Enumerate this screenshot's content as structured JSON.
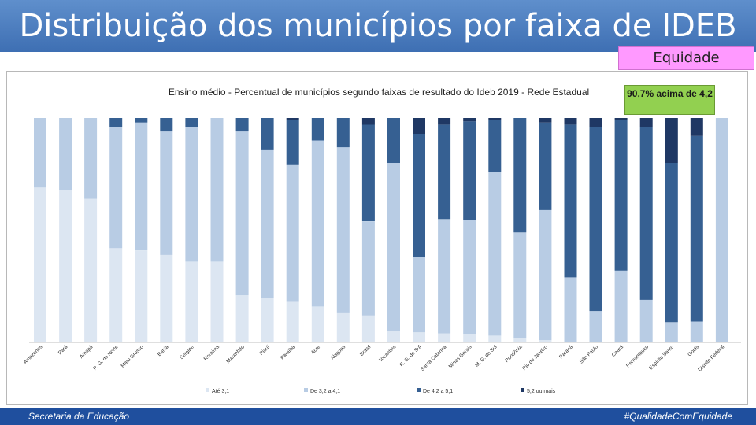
{
  "slide": {
    "title": "Distribuição dos municípios por faixa de IDEB",
    "tag": "Equidade",
    "callout": "90,7% acima de 4,2",
    "footer_left": "Secretaria  da Educação",
    "footer_right": "#QualidadeComEquidade"
  },
  "colors": {
    "title_bar": "#4a7ebf",
    "tag_bg": "#ff99ff",
    "callout_bg": "#92d050",
    "footer_bg": "#1f4f9e",
    "series": [
      "#dce6f2",
      "#b8cce4",
      "#366092",
      "#1f3864"
    ]
  },
  "chart_data": {
    "type": "bar",
    "stacked": true,
    "percent": true,
    "title": "Ensino médio - Percentual de municípios segundo faixas de resultado do Ideb 2019 - Rede Estadual",
    "categories": [
      "Amazonas",
      "Pará",
      "Amapá",
      "R. G. do Norte",
      "Mato Grosso",
      "Bahia",
      "Sergipe",
      "Roraima",
      "Maranhão",
      "Piauí",
      "Paraíba",
      "Acre",
      "Alagoas",
      "Brasil",
      "Tocantins",
      "R. G. do Sul",
      "Santa Catarina",
      "Minas Gerais",
      "M. G. do Sul",
      "Rondônia",
      "Rio de Janeiro",
      "Paraná",
      "São Paulo",
      "Ceará",
      "Pernambuco",
      "Espírito Santo",
      "Goiás",
      "Distrito Federal"
    ],
    "series": [
      {
        "name": "Até 3,1",
        "values": [
          69,
          68,
          64,
          42,
          41,
          39,
          36,
          36,
          21,
          20,
          18,
          16,
          13,
          12,
          5,
          4.5,
          4,
          3.5,
          3,
          2,
          1,
          0,
          0,
          0,
          0,
          0,
          0,
          0
        ]
      },
      {
        "name": "De 3,2 a 4,1",
        "values": [
          31,
          32,
          36,
          54,
          57,
          55,
          60,
          64,
          73,
          66,
          61,
          74,
          74,
          42,
          75,
          33.5,
          51,
          51,
          73,
          47,
          58,
          29,
          14,
          32,
          19,
          9,
          9.3,
          100
        ]
      },
      {
        "name": "De 4,2 a 5,1",
        "values": [
          0,
          0,
          0,
          4,
          2,
          6,
          4,
          0,
          6,
          14,
          20,
          10,
          13,
          43,
          20,
          55,
          42,
          44,
          23,
          51,
          39,
          68,
          82,
          67,
          77,
          71,
          82.7,
          0
        ]
      },
      {
        "name": "5,2 ou mais",
        "values": [
          0,
          0,
          0,
          0,
          0,
          0,
          0,
          0,
          0,
          0,
          1,
          0,
          0,
          3,
          0,
          7,
          3,
          1.5,
          1,
          0,
          2,
          3,
          4,
          1,
          4,
          20,
          8,
          0
        ]
      }
    ],
    "ylim": [
      0,
      100
    ],
    "legend_position": "bottom",
    "grid": false
  }
}
